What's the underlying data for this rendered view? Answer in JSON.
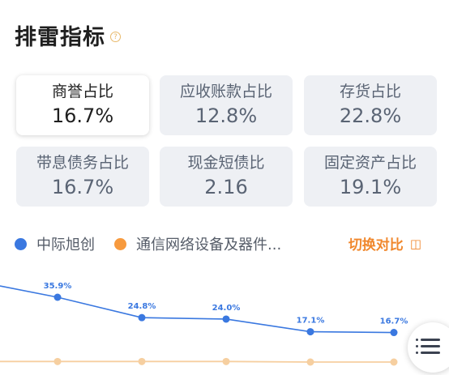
{
  "header": {
    "title": "排雷指标",
    "help": "?"
  },
  "cards": [
    {
      "label": "商誉占比",
      "value": "16.7%"
    },
    {
      "label": "应收账款占比",
      "value": "12.8%"
    },
    {
      "label": "存货占比",
      "value": "22.8%"
    },
    {
      "label": "带息债务占比",
      "value": "16.7%"
    },
    {
      "label": "现金短债比",
      "value": "2.16"
    },
    {
      "label": "固定资产占比",
      "value": "19.1%"
    }
  ],
  "legend": {
    "series_a": "中际旭创",
    "series_b": "通信网络设备及器件...",
    "switch_label": "切换对比",
    "switch_icon": "◫"
  },
  "colors": {
    "series_a": "#3a78e0",
    "series_b": "#f6cfa0",
    "accent": "#f0872c"
  },
  "chart_data": {
    "type": "line",
    "x": [
      "p0",
      "p1",
      "p2",
      "p3",
      "p4",
      "p5"
    ],
    "series": [
      {
        "name": "中际旭创",
        "values": [
          null,
          35.9,
          24.8,
          24.0,
          17.1,
          16.7
        ],
        "labels": [
          "",
          "35.9%",
          "24.8%",
          "24.0%",
          "17.1%",
          "16.7%"
        ]
      },
      {
        "name": "通信网络设备及器件...",
        "values": [
          null,
          0.9,
          0.9,
          0.9,
          0.6,
          0.6
        ]
      }
    ],
    "ylim": [
      0,
      45
    ]
  }
}
